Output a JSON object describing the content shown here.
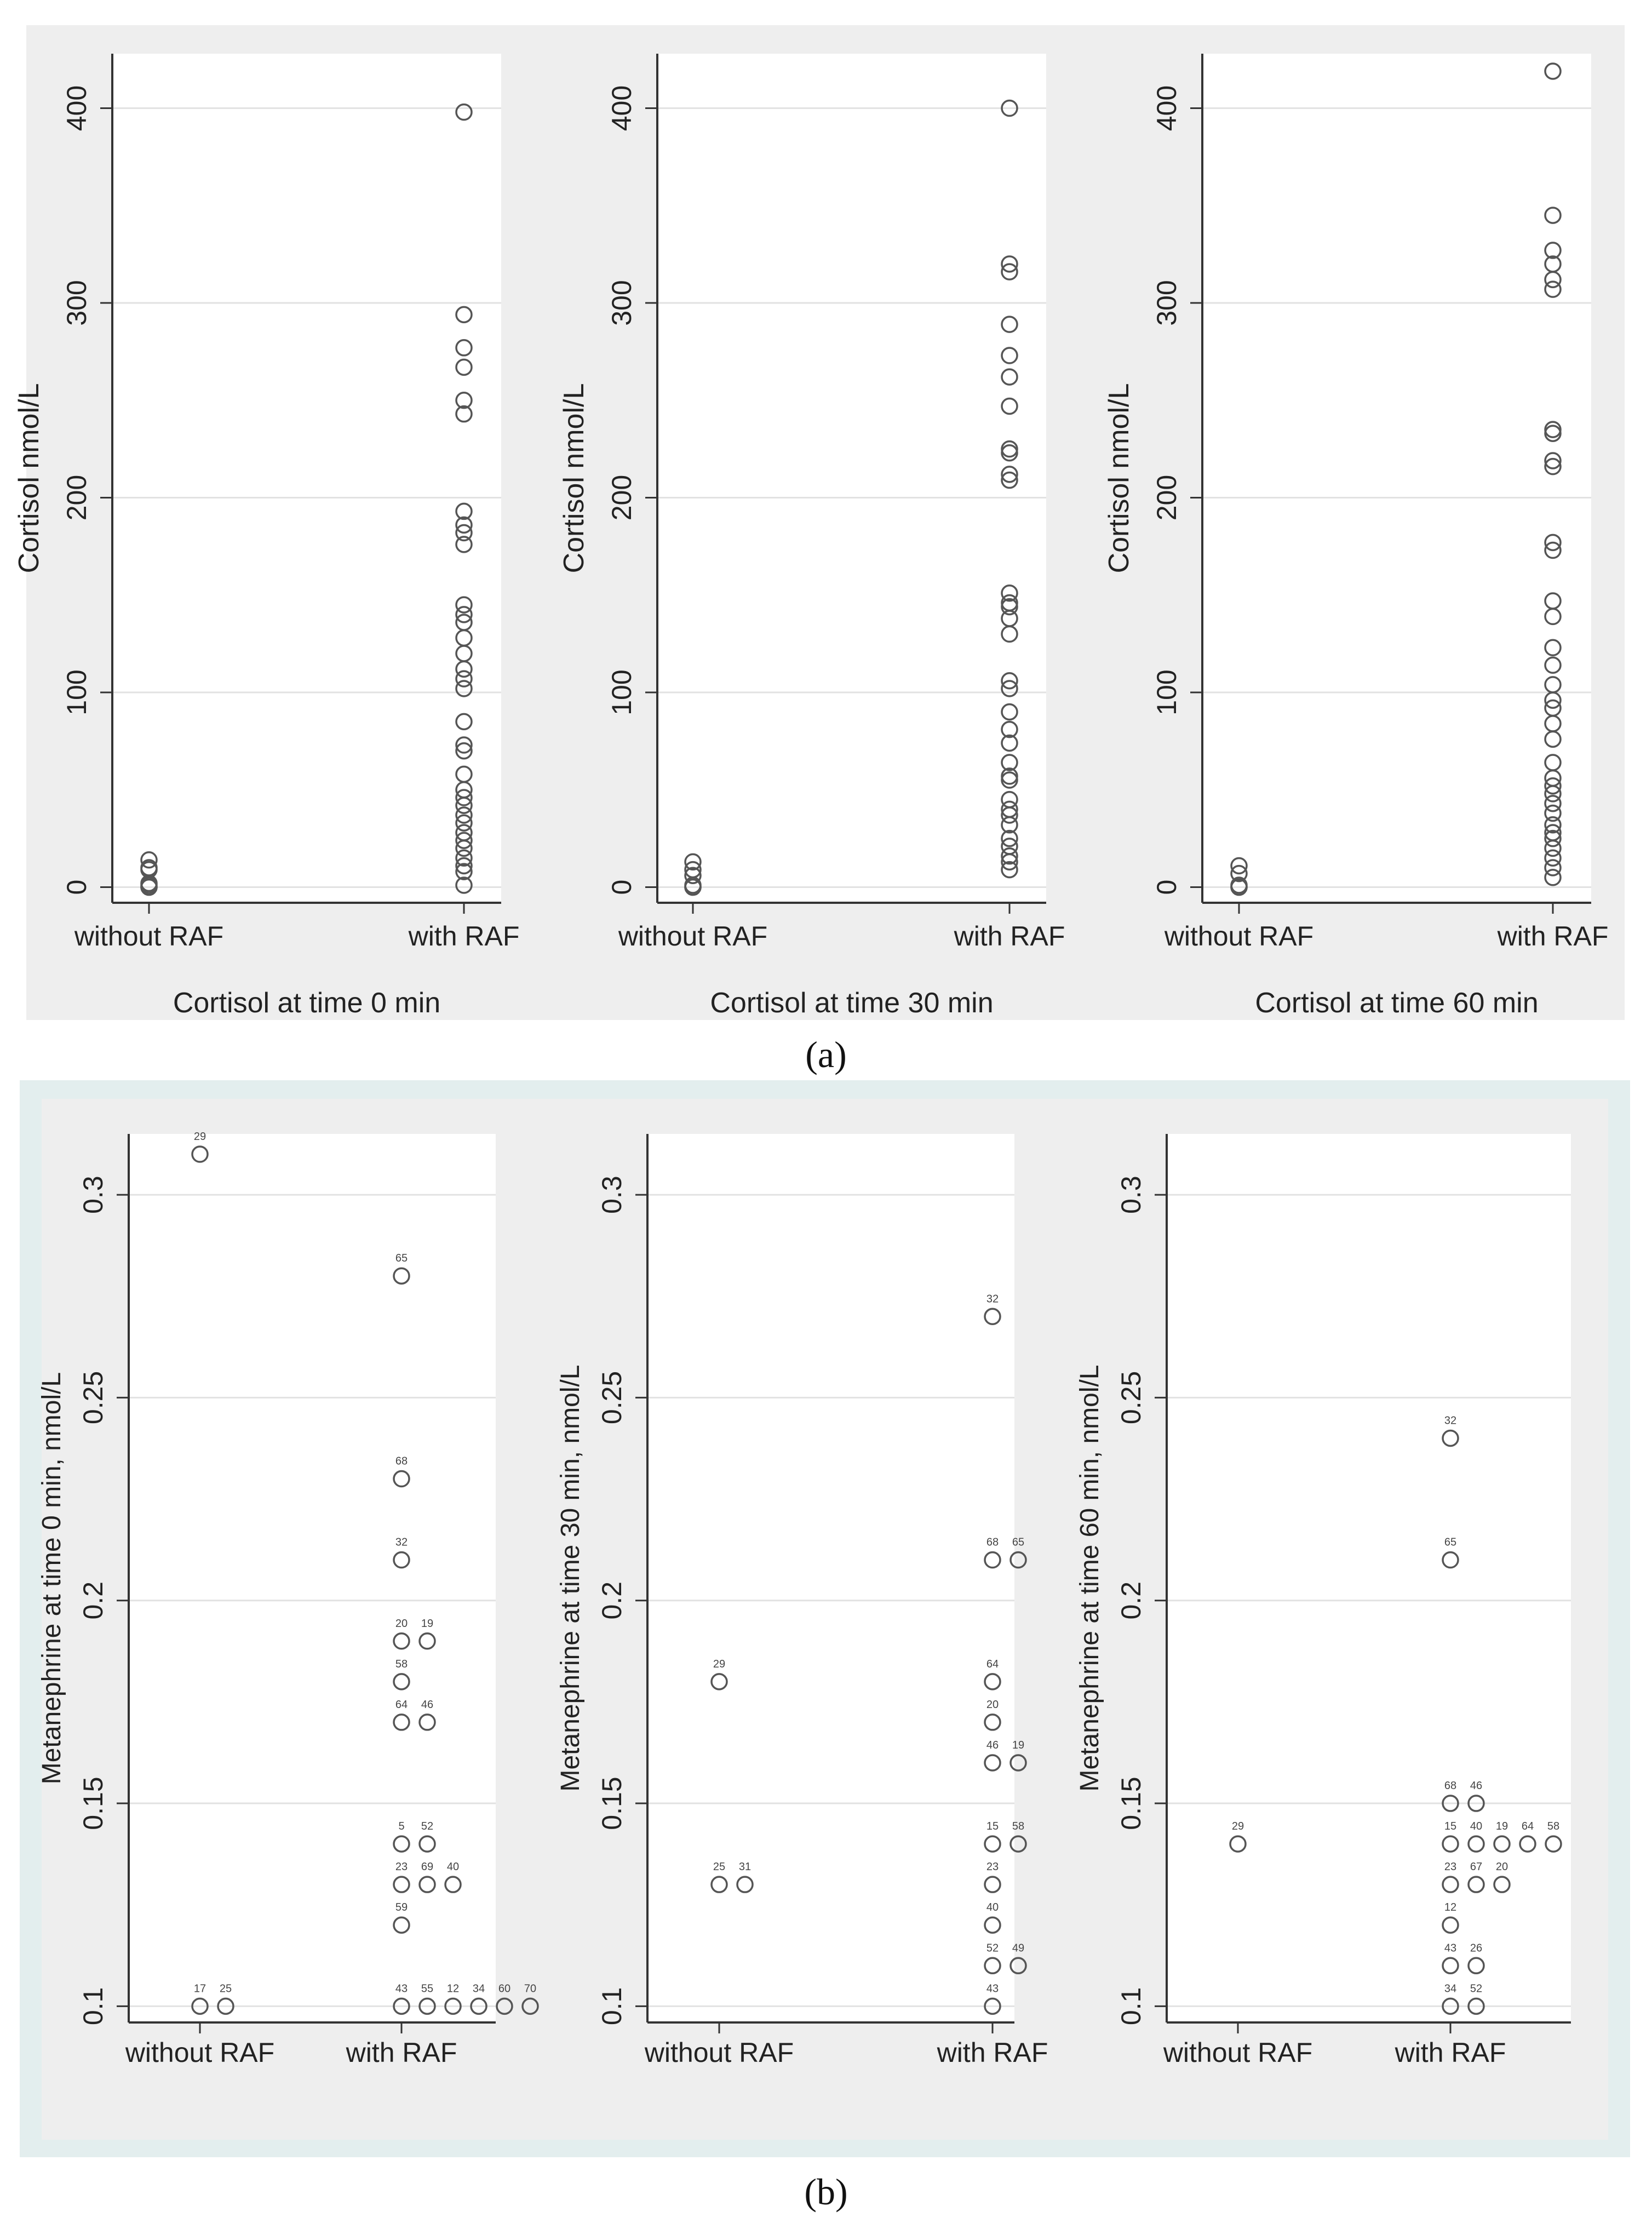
{
  "captions": {
    "a": "(a)",
    "b": "(b)"
  },
  "chart_data": [
    {
      "panel": "a",
      "type": "scatter",
      "title": "Cortisol at time 0 min",
      "ylabel": "Cortisol nmol/L",
      "categories": [
        "without RAF",
        "with RAF"
      ],
      "ylim": [
        -8,
        428
      ],
      "yticks": [
        0,
        100,
        200,
        300,
        400
      ],
      "ytick_labels": [
        "0",
        "100",
        "200",
        "300",
        "400"
      ],
      "series": [
        {
          "name": "without RAF",
          "values": [
            0,
            0,
            1,
            2,
            9,
            10,
            14
          ]
        },
        {
          "name": "with RAF",
          "values": [
            1,
            8,
            11,
            15,
            20,
            24,
            28,
            33,
            37,
            42,
            46,
            50,
            58,
            70,
            73,
            85,
            102,
            107,
            112,
            120,
            128,
            136,
            140,
            145,
            176,
            182,
            186,
            193,
            243,
            250,
            267,
            277,
            294,
            398
          ]
        }
      ]
    },
    {
      "panel": "a",
      "type": "scatter",
      "title": "Cortisol at time 30 min",
      "ylabel": "Cortisol nmol/L",
      "categories": [
        "without RAF",
        "with RAF"
      ],
      "ylim": [
        -8,
        428
      ],
      "yticks": [
        0,
        100,
        200,
        300,
        400
      ],
      "ytick_labels": [
        "0",
        "100",
        "200",
        "300",
        "400"
      ],
      "series": [
        {
          "name": "without RAF",
          "values": [
            0,
            0,
            1,
            6,
            9,
            13
          ]
        },
        {
          "name": "with RAF",
          "values": [
            9,
            13,
            16,
            21,
            25,
            32,
            37,
            40,
            45,
            55,
            57,
            64,
            74,
            81,
            90,
            102,
            106,
            130,
            138,
            144,
            146,
            151,
            209,
            212,
            223,
            225,
            247,
            262,
            273,
            289,
            316,
            320,
            400
          ]
        }
      ]
    },
    {
      "panel": "a",
      "type": "scatter",
      "title": "Cortisol at time 60 min",
      "ylabel": "Cortisol nmol/L",
      "categories": [
        "without RAF",
        "with RAF"
      ],
      "ylim": [
        -8,
        428
      ],
      "yticks": [
        0,
        100,
        200,
        300,
        400
      ],
      "ytick_labels": [
        "0",
        "100",
        "200",
        "300",
        "400"
      ],
      "series": [
        {
          "name": "without RAF",
          "values": [
            0,
            0,
            1,
            7,
            11
          ]
        },
        {
          "name": "with RAF",
          "values": [
            5,
            10,
            15,
            20,
            25,
            28,
            32,
            38,
            43,
            48,
            52,
            56,
            64,
            76,
            84,
            92,
            96,
            104,
            114,
            123,
            139,
            147,
            173,
            177,
            216,
            219,
            233,
            235,
            307,
            312,
            320,
            327,
            345,
            419
          ]
        }
      ]
    },
    {
      "panel": "b",
      "type": "scatter",
      "title": "",
      "ylabel": "Metanephrine at time 0 min, nmol/L",
      "categories": [
        "without RAF",
        "with RAF"
      ],
      "ylim": [
        0.096,
        0.315
      ],
      "yticks": [
        0.1,
        0.15,
        0.2,
        0.25,
        0.3
      ],
      "ytick_labels": [
        "0.1",
        "0.15",
        "0.2",
        "0.25",
        "0.3"
      ],
      "points": [
        {
          "group": "without RAF",
          "slot": 0,
          "value": 0.31,
          "label": "29"
        },
        {
          "group": "without RAF",
          "slot": 0,
          "value": 0.1,
          "label": "17"
        },
        {
          "group": "without RAF",
          "slot": 1,
          "value": 0.1,
          "label": "25"
        },
        {
          "group": "with RAF",
          "slot": 0,
          "value": 0.28,
          "label": "65"
        },
        {
          "group": "with RAF",
          "slot": 0,
          "value": 0.23,
          "label": "68"
        },
        {
          "group": "with RAF",
          "slot": 0,
          "value": 0.21,
          "label": "32"
        },
        {
          "group": "with RAF",
          "slot": 0,
          "value": 0.19,
          "label": "20"
        },
        {
          "group": "with RAF",
          "slot": 1,
          "value": 0.19,
          "label": "19"
        },
        {
          "group": "with RAF",
          "slot": 0,
          "value": 0.18,
          "label": "58"
        },
        {
          "group": "with RAF",
          "slot": 0,
          "value": 0.17,
          "label": "64"
        },
        {
          "group": "with RAF",
          "slot": 1,
          "value": 0.17,
          "label": "46"
        },
        {
          "group": "with RAF",
          "slot": 0,
          "value": 0.14,
          "label": "5"
        },
        {
          "group": "with RAF",
          "slot": 1,
          "value": 0.14,
          "label": "52"
        },
        {
          "group": "with RAF",
          "slot": 0,
          "value": 0.13,
          "label": "23"
        },
        {
          "group": "with RAF",
          "slot": 1,
          "value": 0.13,
          "label": "69"
        },
        {
          "group": "with RAF",
          "slot": 2,
          "value": 0.13,
          "label": "40"
        },
        {
          "group": "with RAF",
          "slot": 0,
          "value": 0.12,
          "label": "59"
        },
        {
          "group": "with RAF",
          "slot": 0,
          "value": 0.1,
          "label": "43"
        },
        {
          "group": "with RAF",
          "slot": 1,
          "value": 0.1,
          "label": "55"
        },
        {
          "group": "with RAF",
          "slot": 2,
          "value": 0.1,
          "label": "12"
        },
        {
          "group": "with RAF",
          "slot": 3,
          "value": 0.1,
          "label": "34"
        },
        {
          "group": "with RAF",
          "slot": 4,
          "value": 0.1,
          "label": "60"
        },
        {
          "group": "with RAF",
          "slot": 5,
          "value": 0.1,
          "label": "70"
        }
      ]
    },
    {
      "panel": "b",
      "type": "scatter",
      "title": "",
      "ylabel": "Metanephrine at time 30 min, nmol/L",
      "categories": [
        "without RAF",
        "with RAF"
      ],
      "ylim": [
        0.096,
        0.315
      ],
      "yticks": [
        0.1,
        0.15,
        0.2,
        0.25,
        0.3
      ],
      "ytick_labels": [
        "0.1",
        "0.15",
        "0.2",
        "0.25",
        "0.3"
      ],
      "points": [
        {
          "group": "without RAF",
          "slot": 0,
          "value": 0.18,
          "label": "29"
        },
        {
          "group": "without RAF",
          "slot": 0,
          "value": 0.13,
          "label": "25"
        },
        {
          "group": "without RAF",
          "slot": 1,
          "value": 0.13,
          "label": "31"
        },
        {
          "group": "with RAF",
          "slot": 0,
          "value": 0.27,
          "label": "32"
        },
        {
          "group": "with RAF",
          "slot": 0,
          "value": 0.21,
          "label": "68"
        },
        {
          "group": "with RAF",
          "slot": 1,
          "value": 0.21,
          "label": "65"
        },
        {
          "group": "with RAF",
          "slot": 0,
          "value": 0.18,
          "label": "64"
        },
        {
          "group": "with RAF",
          "slot": 0,
          "value": 0.17,
          "label": "20"
        },
        {
          "group": "with RAF",
          "slot": 0,
          "value": 0.16,
          "label": "46"
        },
        {
          "group": "with RAF",
          "slot": 1,
          "value": 0.16,
          "label": "19"
        },
        {
          "group": "with RAF",
          "slot": 0,
          "value": 0.14,
          "label": "15"
        },
        {
          "group": "with RAF",
          "slot": 1,
          "value": 0.14,
          "label": "58"
        },
        {
          "group": "with RAF",
          "slot": 0,
          "value": 0.13,
          "label": "23"
        },
        {
          "group": "with RAF",
          "slot": 0,
          "value": 0.12,
          "label": "40"
        },
        {
          "group": "with RAF",
          "slot": 0,
          "value": 0.11,
          "label": "52"
        },
        {
          "group": "with RAF",
          "slot": 1,
          "value": 0.11,
          "label": "49"
        },
        {
          "group": "with RAF",
          "slot": 0,
          "value": 0.1,
          "label": "43"
        }
      ]
    },
    {
      "panel": "b",
      "type": "scatter",
      "title": "",
      "ylabel": "Metanephrine at time 60 min, nmol/L",
      "categories": [
        "without RAF",
        "with RAF"
      ],
      "ylim": [
        0.096,
        0.315
      ],
      "yticks": [
        0.1,
        0.15,
        0.2,
        0.25,
        0.3
      ],
      "ytick_labels": [
        "0.1",
        "0.15",
        "0.2",
        "0.25",
        "0.3"
      ],
      "points": [
        {
          "group": "without RAF",
          "slot": 0,
          "value": 0.14,
          "label": "29"
        },
        {
          "group": "with RAF",
          "slot": 0,
          "value": 0.24,
          "label": "32"
        },
        {
          "group": "with RAF",
          "slot": 0,
          "value": 0.21,
          "label": "65"
        },
        {
          "group": "with RAF",
          "slot": 0,
          "value": 0.15,
          "label": "68"
        },
        {
          "group": "with RAF",
          "slot": 1,
          "value": 0.15,
          "label": "46"
        },
        {
          "group": "with RAF",
          "slot": 0,
          "value": 0.14,
          "label": "15"
        },
        {
          "group": "with RAF",
          "slot": 1,
          "value": 0.14,
          "label": "40"
        },
        {
          "group": "with RAF",
          "slot": 2,
          "value": 0.14,
          "label": "19"
        },
        {
          "group": "with RAF",
          "slot": 3,
          "value": 0.14,
          "label": "64"
        },
        {
          "group": "with RAF",
          "slot": 4,
          "value": 0.14,
          "label": "58"
        },
        {
          "group": "with RAF",
          "slot": 0,
          "value": 0.13,
          "label": "23"
        },
        {
          "group": "with RAF",
          "slot": 1,
          "value": 0.13,
          "label": "67"
        },
        {
          "group": "with RAF",
          "slot": 2,
          "value": 0.13,
          "label": "20"
        },
        {
          "group": "with RAF",
          "slot": 0,
          "value": 0.12,
          "label": "12"
        },
        {
          "group": "with RAF",
          "slot": 0,
          "value": 0.11,
          "label": "43"
        },
        {
          "group": "with RAF",
          "slot": 1,
          "value": 0.11,
          "label": "26"
        },
        {
          "group": "with RAF",
          "slot": 0,
          "value": 0.1,
          "label": "34"
        },
        {
          "group": "with RAF",
          "slot": 1,
          "value": 0.1,
          "label": "52"
        }
      ]
    }
  ]
}
